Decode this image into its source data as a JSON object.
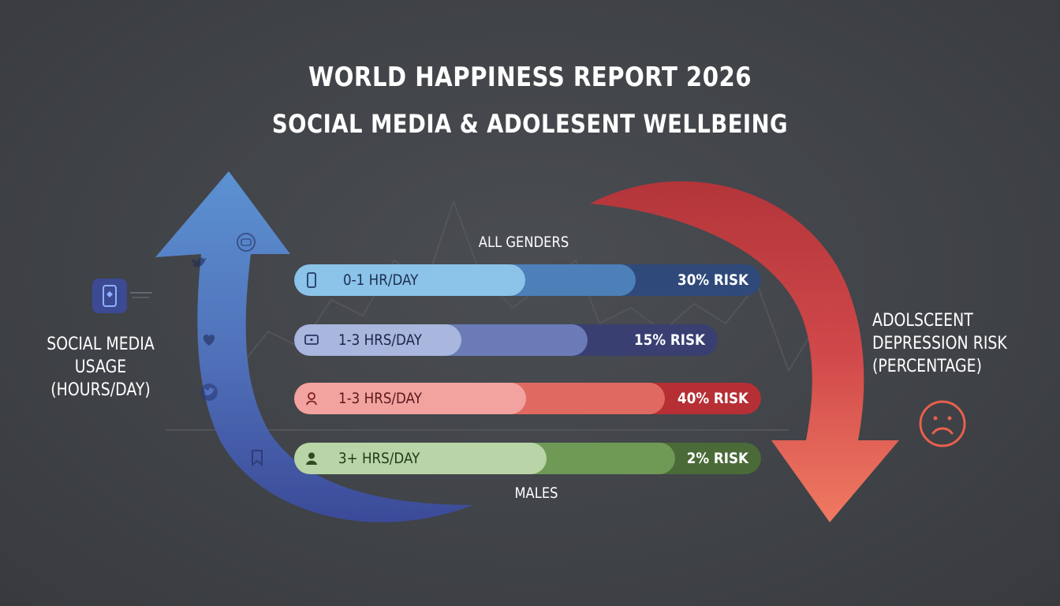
{
  "title": "WORLD HAPPINESS REPORT 2026",
  "subtitle": "SOCIAL MEDIA & ADOLESENT WELLBEING",
  "left_axis_label": [
    "SOCIAL MEDIA USAGE",
    "(HOURS/DAY)"
  ],
  "right_axis_label": [
    "ADOLSCEENT",
    "DEPRESSION RISK",
    "(PERCENTAGE)"
  ],
  "colors": {
    "background": "#404347",
    "arrow_up_top": "#5b8fcf",
    "arrow_up_bottom": "#3a4b9a",
    "arrow_down_top": "#b8383a",
    "arrow_down_bottom": "#ee6b5b",
    "sad_face": "#e8604e"
  },
  "icons": {
    "left": "smartphone-icon",
    "arrow_social": [
      "youtube-icon",
      "twitter-icon",
      "heart-icon",
      "twitter-icon",
      "bookmark-icon"
    ],
    "right": "sad-face-icon"
  },
  "chart_data": {
    "type": "bar",
    "groups": [
      {
        "label": "ALL GENDERS",
        "position": "top"
      },
      {
        "label": "MALES",
        "position": "bottom"
      }
    ],
    "categories": [
      "0-1 HR/DAY",
      "1-3 HRS/DAY",
      "1-3 HRS/DAY",
      "3+ HRS/DAY"
    ],
    "series": [
      {
        "values": [
          30,
          15,
          40,
          2
        ],
        "labels": [
          "30% RISK",
          "15% RISK",
          "40% RISK",
          "2% RISK"
        ]
      }
    ],
    "bar_colors": [
      [
        "#8cc3e8",
        "#4d7fb8",
        "#2f4a7a"
      ],
      [
        "#a9b6dd",
        "#6b7bb8",
        "#3a3f72"
      ],
      [
        "#f2a3a0",
        "#e06a62",
        "#b52f35"
      ],
      [
        "#b9d4a6",
        "#6f9a56",
        "#4a6b38"
      ]
    ],
    "bar_icons": [
      "smartphone-icon",
      "tv-icon",
      "person-icon",
      "user-icon"
    ],
    "xlabel": "",
    "ylabel": ""
  }
}
